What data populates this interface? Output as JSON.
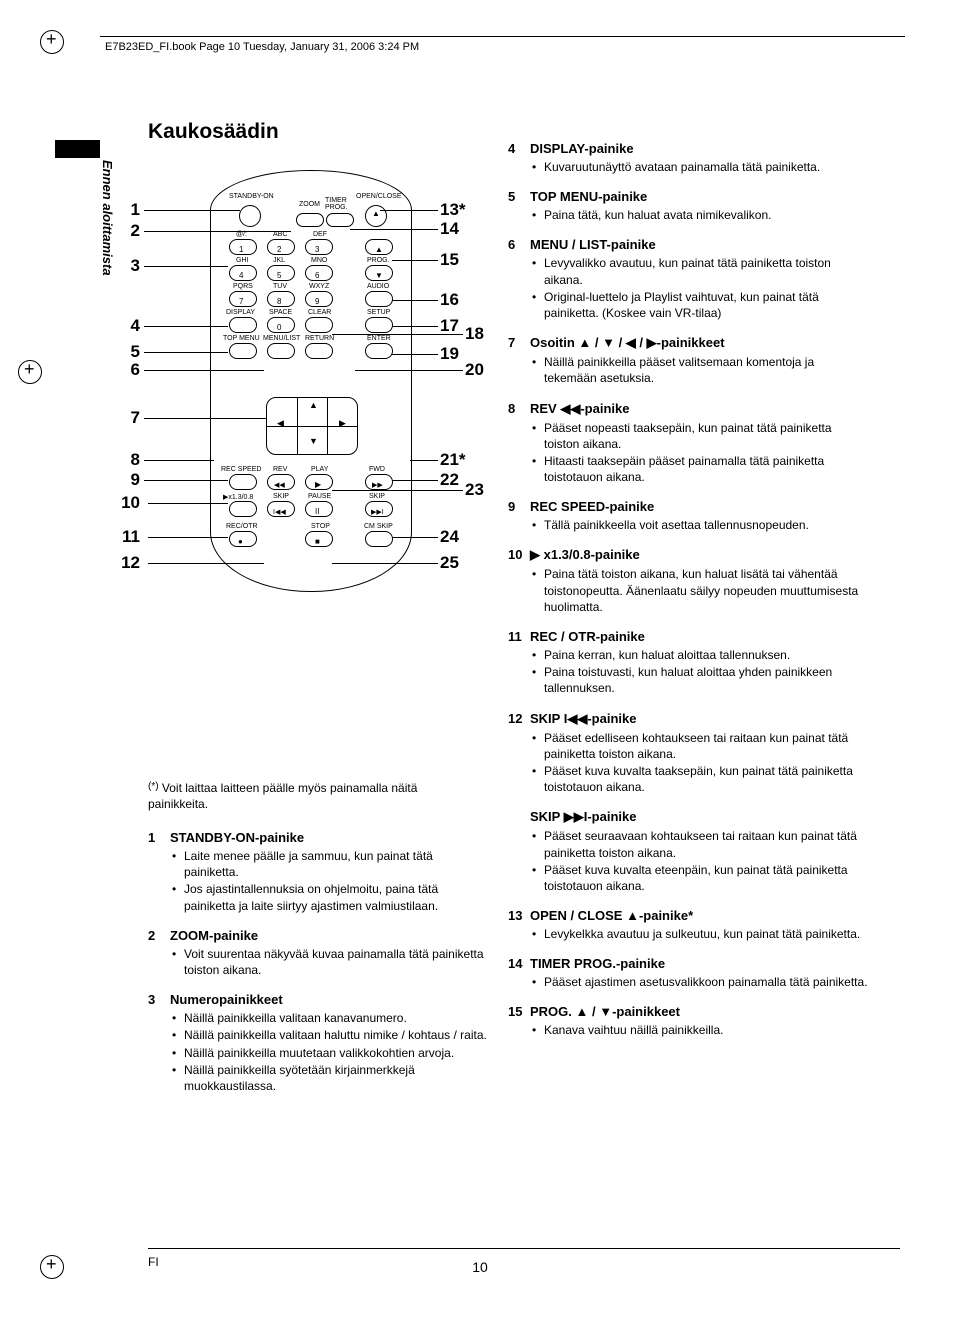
{
  "header": {
    "text": "E7B23ED_FI.book  Page 10  Tuesday, January 31, 2006  3:24 PM"
  },
  "page": {
    "title": "Kaukosäädin",
    "vertical_label": "Ennen aloittamista",
    "footer_label": "FI",
    "page_number": "10"
  },
  "remote": {
    "top_left_label": "STANDBY-ON",
    "top_timer": "TIMER",
    "top_prog": "PROG.",
    "top_right_label": "OPEN/CLOSE",
    "zoom": "ZOOM",
    "row1_a": "@/:",
    "row1_b": "ABC",
    "row1_c": "DEF",
    "row2_a": "GHI",
    "row2_b": "JKL",
    "row2_c": "MNO",
    "row2_d": "PROG.",
    "row3_a": "PQRS",
    "row3_b": "TUV",
    "row3_c": "WXYZ",
    "row3_d": "AUDIO",
    "row4_a": "DISPLAY",
    "row4_b": "SPACE",
    "row4_c": "CLEAR",
    "row4_d": "SETUP",
    "row5_a": "TOP MENU",
    "row5_b": "MENU/LIST",
    "row5_c": "RETURN",
    "row5_d": "ENTER",
    "play_row_a": "REC SPEED",
    "play_row_b": "REV",
    "play_row_c": "PLAY",
    "play_row_d": "FWD",
    "skip_row_a": "▶x1.3/0.8",
    "skip_row_b": "SKIP",
    "skip_row_c": "PAUSE",
    "skip_row_d": "SKIP",
    "bot_row_a": "REC/OTR",
    "bot_row_c": "STOP",
    "bot_row_d": "CM SKIP"
  },
  "callouts_left": [
    "1",
    "2",
    "3",
    "4",
    "5",
    "6",
    "7",
    "8",
    "9",
    "10",
    "11",
    "12"
  ],
  "callouts_right": [
    "13*",
    "14",
    "15",
    "16",
    "17",
    "18",
    "19",
    "20",
    "21*",
    "22",
    "23",
    "24",
    "25"
  ],
  "footnote": "Voit laittaa laitteen päälle myös painamalla näitä painikkeita.",
  "asterisk": "(*)",
  "left_entries": [
    {
      "num": "1",
      "title": "STANDBY-ON-painike",
      "items": [
        "Laite menee päälle ja sammuu, kun painat tätä painiketta.",
        "Jos ajastintallennuksia on ohjelmoitu, paina tätä painiketta ja laite siirtyy ajastimen valmiustilaan."
      ]
    },
    {
      "num": "2",
      "title": "ZOOM-painike",
      "items": [
        "Voit suurentaa näkyvää kuvaa painamalla tätä painiketta toiston aikana."
      ]
    },
    {
      "num": "3",
      "title": "Numeropainikkeet",
      "items": [
        "Näillä painikkeilla valitaan kanavanumero.",
        "Näillä painikkeilla valitaan haluttu nimike / kohtaus / raita.",
        "Näillä painikkeilla muutetaan valikkokohtien arvoja.",
        "Näillä painikkeilla syötetään kirjainmerkkejä muokkaustilassa."
      ]
    }
  ],
  "right_entries": [
    {
      "num": "4",
      "title": "DISPLAY-painike",
      "items": [
        "Kuvaruutunäyttö avataan painamalla tätä painiketta."
      ]
    },
    {
      "num": "5",
      "title": "TOP MENU-painike",
      "items": [
        "Paina tätä, kun haluat avata nimikevalikon."
      ]
    },
    {
      "num": "6",
      "title": "MENU / LIST-painike",
      "items": [
        "Levyvalikko avautuu, kun painat tätä painiketta toiston aikana.",
        "Original-luettelo ja Playlist vaihtuvat, kun painat tätä painiketta. (Koskee vain VR-tilaa)"
      ]
    },
    {
      "num": "7",
      "title": "Osoitin ▲ / ▼ / ◀ / ▶-painikkeet",
      "items": [
        "Näillä painikkeilla pääset valitsemaan komentoja ja tekemään asetuksia."
      ]
    },
    {
      "num": "8",
      "title": "REV ◀◀-painike",
      "items": [
        "Pääset nopeasti taaksepäin, kun painat tätä painiketta toiston aikana.",
        "Hitaasti taaksepäin pääset painamalla tätä painiketta toistotauon aikana."
      ]
    },
    {
      "num": "9",
      "title": "REC SPEED-painike",
      "items": [
        "Tällä painikkeella voit asettaa tallennusnopeuden."
      ]
    },
    {
      "num": "10",
      "title": "▶ x1.3/0.8-painike",
      "items": [
        "Paina tätä toiston aikana, kun haluat lisätä tai vähentää toistonopeutta. Äänenlaatu säilyy nopeuden muuttumisesta huolimatta."
      ]
    },
    {
      "num": "11",
      "title": "REC / OTR-painike",
      "items": [
        "Paina kerran, kun haluat aloittaa tallennuksen.",
        "Paina toistuvasti, kun haluat aloittaa yhden painikkeen tallennuksen."
      ]
    },
    {
      "num": "12",
      "title": "SKIP I◀◀-painike",
      "items": [
        "Pääset edelliseen kohtaukseen tai raitaan kun painat tätä painiketta toiston aikana.",
        "Pääset kuva kuvalta taaksepäin, kun painat tätä painiketta toistotauon aikana."
      ]
    },
    {
      "num": "",
      "title": "SKIP ▶▶I-painike",
      "items": [
        "Pääset seuraavaan kohtaukseen tai raitaan kun painat tätä painiketta toiston aikana.",
        "Pääset kuva kuvalta eteenpäin, kun painat tätä painiketta toistotauon aikana."
      ]
    },
    {
      "num": "13",
      "title": "OPEN / CLOSE ▲-painike*",
      "items": [
        "Levykelkka avautuu ja sulkeutuu, kun painat tätä painiketta."
      ]
    },
    {
      "num": "14",
      "title": "TIMER PROG.-painike",
      "items": [
        "Pääset ajastimen asetusvalikkoon painamalla tätä painiketta."
      ]
    },
    {
      "num": "15",
      "title": "PROG. ▲ / ▼-painikkeet",
      "items": [
        "Kanava vaihtuu näillä painikkeilla."
      ]
    }
  ]
}
